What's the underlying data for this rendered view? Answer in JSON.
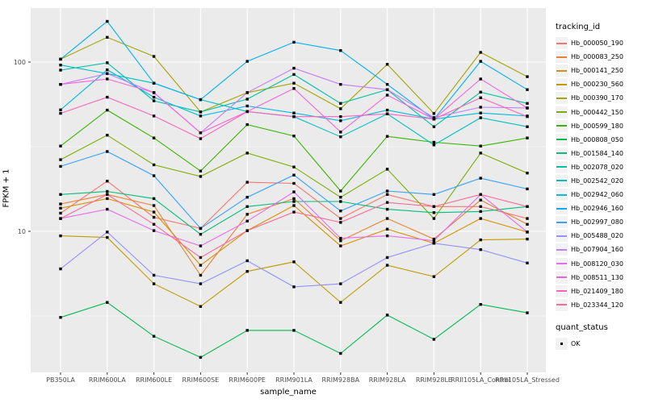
{
  "chart_data": {
    "type": "line",
    "title": "",
    "xlabel": "sample_name",
    "ylabel": "FPKM + 1",
    "x_categories": [
      "PB350LA",
      "RRIM600LA",
      "RRIM600LE",
      "RRIM600SE",
      "RRIM600PE",
      "RRIM901LA",
      "RRIM928BA",
      "RRIM928LA",
      "RRIM928LE",
      "RRII105LA_Control",
      "RRII105LA_Stressed"
    ],
    "y_scale": "log10",
    "y_major_ticks": [
      10,
      100
    ],
    "y_minor_ticks": [
      3.162,
      31.62
    ],
    "ylim": [
      1.5,
      208
    ],
    "grid": true,
    "legend_position": "right",
    "point_marker": {
      "shape": "square",
      "color": "#000000",
      "legend_label": "OK"
    },
    "series": [
      {
        "name": "Hb_000050_190",
        "color": "#F8766D",
        "values": [
          12.8,
          19.8,
          12.1,
          10.4,
          19.5,
          19.2,
          11.9,
          16.5,
          14.0,
          14.0,
          11.9
        ]
      },
      {
        "name": "Hb_000083_250",
        "color": "#EA8331",
        "values": [
          14.5,
          16.5,
          14.2,
          5.5,
          12.6,
          15.6,
          8.8,
          11.9,
          9.0,
          15.3,
          11.0
        ]
      },
      {
        "name": "Hb_000141_250",
        "color": "#D89000",
        "values": [
          13.7,
          15.6,
          13.0,
          6.3,
          10.1,
          14.2,
          8.2,
          10.3,
          8.5,
          11.9,
          9.9
        ]
      },
      {
        "name": "Hb_000230_560",
        "color": "#C09B00",
        "values": [
          9.4,
          9.2,
          4.9,
          3.6,
          5.8,
          6.6,
          3.8,
          6.3,
          5.4,
          8.9,
          9.0
        ]
      },
      {
        "name": "Hb_000390_170",
        "color": "#A3A500",
        "values": [
          104,
          140,
          108,
          50.7,
          66,
          75,
          53,
          97,
          49.7,
          114,
          82
        ]
      },
      {
        "name": "Hb_000442_150",
        "color": "#7CAE00",
        "values": [
          26.5,
          37,
          24.7,
          21.1,
          29,
          24,
          15.9,
          23.3,
          11.9,
          29,
          22.1
        ]
      },
      {
        "name": "Hb_000599_180",
        "color": "#39B600",
        "values": [
          31.9,
          52,
          35.6,
          22.7,
          42.7,
          36.6,
          17.3,
          36.4,
          33.6,
          31.9,
          35.6
        ]
      },
      {
        "name": "Hb_000808_050",
        "color": "#00BB4E",
        "values": [
          3.1,
          3.8,
          2.4,
          1.8,
          2.6,
          2.6,
          1.9,
          3.2,
          2.3,
          3.7,
          3.3
        ]
      },
      {
        "name": "Hb_001584_140",
        "color": "#00BF7D",
        "values": [
          16.5,
          17.2,
          15.6,
          9.6,
          14.0,
          15.0,
          15.0,
          13.5,
          12.9,
          13.1,
          14.0
        ]
      },
      {
        "name": "Hb_002078_020",
        "color": "#00C1A3",
        "values": [
          89.6,
          99,
          59,
          50.7,
          60.4,
          84.5,
          57,
          68.7,
          41.5,
          66.4,
          57
        ]
      },
      {
        "name": "Hb_002542_020",
        "color": "#00BFC4",
        "values": [
          96,
          85.5,
          75,
          60,
          51,
          47.6,
          36.2,
          49.4,
          32.4,
          46.9,
          41.5
        ]
      },
      {
        "name": "Hb_002942_060",
        "color": "#00BAE0",
        "values": [
          52.2,
          90,
          62,
          48,
          55,
          50,
          45,
          52,
          46,
          50,
          48
        ]
      },
      {
        "name": "Hb_002946_160",
        "color": "#00B0F6",
        "values": [
          104,
          174,
          75,
          60,
          101,
          131,
          117,
          73.8,
          46,
          101,
          68.7
        ]
      },
      {
        "name": "Hb_002997_080",
        "color": "#35A2FF",
        "values": [
          24.2,
          29.6,
          21.3,
          10.4,
          15.9,
          21.5,
          13.2,
          17.3,
          16.5,
          20.6,
          17.8
        ]
      },
      {
        "name": "Hb_005488_020",
        "color": "#9590FF",
        "values": [
          6.0,
          9.9,
          5.5,
          4.9,
          6.7,
          4.7,
          4.9,
          7.0,
          8.5,
          7.8,
          6.5
        ]
      },
      {
        "name": "Hb_007904_160",
        "color": "#C77CFF",
        "values": [
          73.8,
          85.5,
          66,
          38.2,
          66,
          92,
          73.8,
          68.7,
          47,
          54.1,
          53.5
        ]
      },
      {
        "name": "Hb_008120_030",
        "color": "#E76BF3",
        "values": [
          11.9,
          13.5,
          10.1,
          8.2,
          11.5,
          17.1,
          9.1,
          9.4,
          8.8,
          16.5,
          9.9
        ]
      },
      {
        "name": "Hb_008511_130",
        "color": "#FA62DB",
        "values": [
          73.8,
          79.4,
          66,
          38.2,
          51,
          69.8,
          38.6,
          63.8,
          46,
          79.4,
          53.5
        ]
      },
      {
        "name": "Hb_021409_180",
        "color": "#FF62BC",
        "values": [
          49.8,
          62,
          48,
          35.3,
          51,
          47.6,
          47.6,
          49.4,
          46,
          61.5,
          47.6
        ]
      },
      {
        "name": "Hb_023344_120",
        "color": "#FF6A98",
        "values": [
          11.9,
          16.5,
          11.0,
          7.0,
          10.1,
          13.0,
          11.3,
          14.8,
          14.0,
          16.5,
          14.0
        ]
      }
    ]
  },
  "axes": {
    "x_title": "sample_name",
    "y_title": "FPKM + 1",
    "y_tick_labels": [
      "100",
      "10"
    ]
  },
  "legend": {
    "tracking_title": "tracking_id",
    "quant_title": "quant_status",
    "quant_items": [
      {
        "label": "OK"
      }
    ]
  },
  "colors": {
    "panel_bg": "#EBEBEB",
    "grid_major": "#FFFFFF",
    "grid_minor": "#F7F7F7",
    "tick": "#333333",
    "tick_text": "#4D4D4D",
    "point": "#000000",
    "legend_key_bg": "#F2F2F2"
  }
}
